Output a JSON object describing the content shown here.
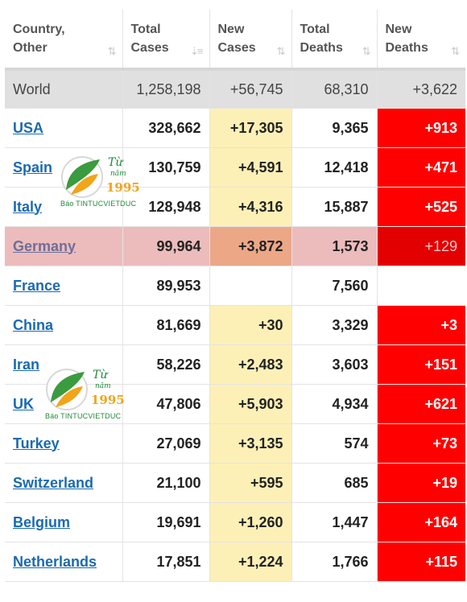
{
  "headers": [
    {
      "line1": "Country,",
      "line2": "Other",
      "sort": "⇅"
    },
    {
      "line1": "Total",
      "line2": "Cases",
      "sort": "⇣≡"
    },
    {
      "line1": "New",
      "line2": "Cases",
      "sort": "⇅"
    },
    {
      "line1": "Total",
      "line2": "Deaths",
      "sort": "⇅"
    },
    {
      "line1": "New",
      "line2": "Deaths",
      "sort": "⇅"
    }
  ],
  "world": {
    "country": "World",
    "total_cases": "1,258,198",
    "new_cases": "+56,745",
    "total_deaths": "68,310",
    "new_deaths": "+3,622"
  },
  "rows": [
    {
      "country": "USA",
      "total_cases": "328,662",
      "new_cases": "+17,305",
      "total_deaths": "9,365",
      "new_deaths": "+913"
    },
    {
      "country": "Spain",
      "total_cases": "130,759",
      "new_cases": "+4,591",
      "total_deaths": "12,418",
      "new_deaths": "+471"
    },
    {
      "country": "Italy",
      "total_cases": "128,948",
      "new_cases": "+4,316",
      "total_deaths": "15,887",
      "new_deaths": "+525"
    },
    {
      "country": "Germany",
      "total_cases": "99,964",
      "new_cases": "+3,872",
      "total_deaths": "1,573",
      "new_deaths": "+129"
    },
    {
      "country": "France",
      "total_cases": "89,953",
      "new_cases": "",
      "total_deaths": "7,560",
      "new_deaths": ""
    },
    {
      "country": "China",
      "total_cases": "81,669",
      "new_cases": "+30",
      "total_deaths": "3,329",
      "new_deaths": "+3"
    },
    {
      "country": "Iran",
      "total_cases": "58,226",
      "new_cases": "+2,483",
      "total_deaths": "3,603",
      "new_deaths": "+151"
    },
    {
      "country": "UK",
      "total_cases": "47,806",
      "new_cases": "+5,903",
      "total_deaths": "4,934",
      "new_deaths": "+621"
    },
    {
      "country": "Turkey",
      "total_cases": "27,069",
      "new_cases": "+3,135",
      "total_deaths": "574",
      "new_deaths": "+73"
    },
    {
      "country": "Switzerland",
      "total_cases": "21,100",
      "new_cases": "+595",
      "total_deaths": "685",
      "new_deaths": "+19"
    },
    {
      "country": "Belgium",
      "total_cases": "19,691",
      "new_cases": "+1,260",
      "total_deaths": "1,447",
      "new_deaths": "+164"
    },
    {
      "country": "Netherlands",
      "total_cases": "17,851",
      "new_cases": "+1,224",
      "total_deaths": "1,766",
      "new_deaths": "+115"
    }
  ],
  "highlighted_country": "Germany",
  "watermark": {
    "tu": "Từ",
    "nam": "năm",
    "year": "1995",
    "brand": "Báo TINTUCVIETDUC"
  },
  "colors": {
    "new_cases_bg": "#fdf0b7",
    "new_deaths_bg": "#ff0000",
    "link": "#1a6ab1",
    "world_bg": "#e0e0e0",
    "highlight_bg": "#ecbcbc"
  }
}
